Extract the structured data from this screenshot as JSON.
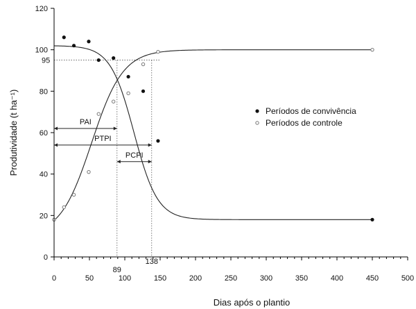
{
  "chart_data": {
    "type": "scatter",
    "title": "",
    "xlabel": "Dias após o plantio",
    "ylabel": "Produtividade (t ha⁻¹)",
    "xlim": [
      0,
      500
    ],
    "ylim": [
      0,
      120
    ],
    "xticks": [
      0,
      50,
      100,
      150,
      200,
      250,
      300,
      350,
      400,
      450,
      500
    ],
    "yticks": [
      0,
      20,
      40,
      60,
      80,
      100,
      120
    ],
    "grid": false,
    "legend_position": "right",
    "series": [
      {
        "name": "Períodos de convivência",
        "marker": "filled-circle",
        "color": "#111111",
        "points": [
          [
            14,
            106
          ],
          [
            28,
            102
          ],
          [
            49,
            104
          ],
          [
            63,
            95
          ],
          [
            84,
            96
          ],
          [
            105,
            87
          ],
          [
            126,
            80
          ],
          [
            147,
            56
          ],
          [
            450,
            18
          ]
        ],
        "fit": {
          "upper": 102,
          "lower": 18,
          "midpoint": 113,
          "slope": 0.06
        }
      },
      {
        "name": "Períodos de controle",
        "marker": "open-circle",
        "color": "#777777",
        "points": [
          [
            0,
            18
          ],
          [
            14,
            24
          ],
          [
            28,
            30
          ],
          [
            49,
            41
          ],
          [
            63,
            69
          ],
          [
            84,
            75
          ],
          [
            105,
            79
          ],
          [
            126,
            93
          ],
          [
            147,
            99
          ],
          [
            450,
            100
          ]
        ],
        "fit": {
          "upper": 100,
          "lower": 10,
          "midpoint": 53,
          "slope": 0.045
        }
      }
    ],
    "annotations": {
      "reference_y_label": "95",
      "reference_y": 95,
      "ptpi_day": 89,
      "pcpi_end_day": 138,
      "ptpi_day_label": "89",
      "pcpi_end_day_label": "138",
      "pai": {
        "label": "PAI",
        "from": 0,
        "to": 89,
        "y": 62
      },
      "ptpi": {
        "label": "PTPI",
        "from": 0,
        "to": 138,
        "y": 54
      },
      "pcpi": {
        "label": "PCPI",
        "from": 89,
        "to": 138,
        "y": 46
      }
    }
  }
}
